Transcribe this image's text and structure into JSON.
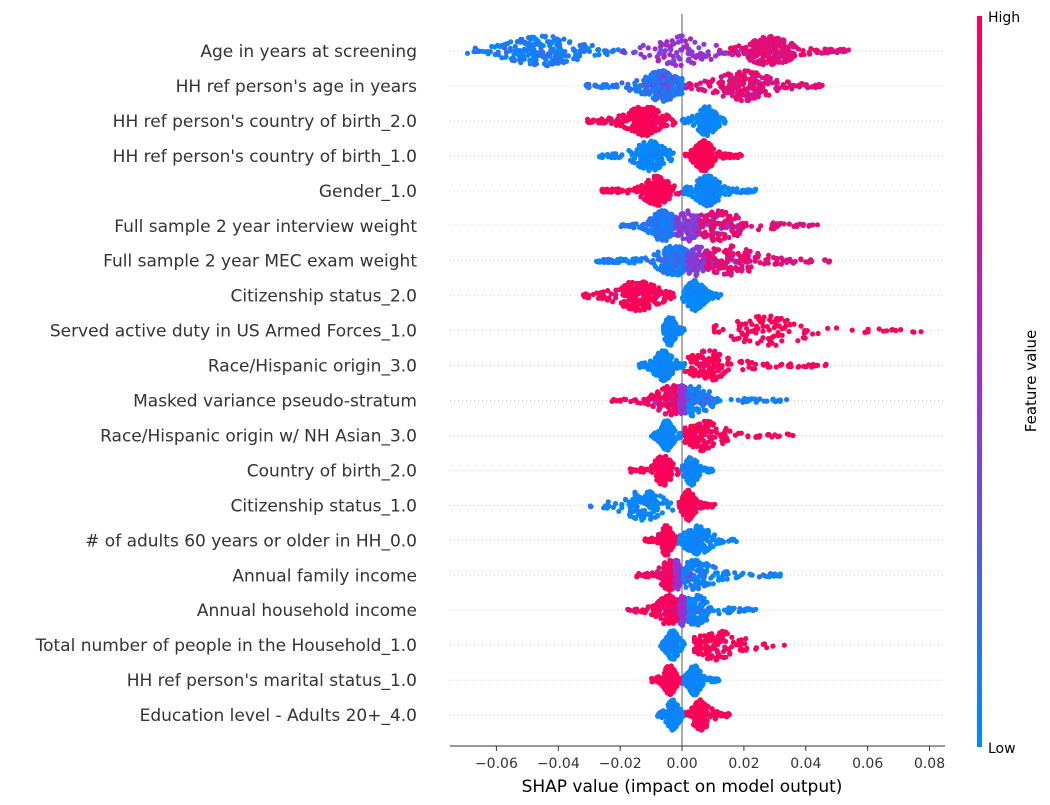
{
  "chart_data": {
    "type": "scatter",
    "subtype": "shap-beeswarm",
    "title": "",
    "xlabel": "SHAP value (impact on model output)",
    "ylabel": "",
    "xlim": [
      -0.075,
      0.085
    ],
    "xticks": [
      -0.06,
      -0.04,
      -0.02,
      0.0,
      0.02,
      0.04,
      0.06,
      0.08
    ],
    "xtick_labels": [
      "−0.06",
      "−0.04",
      "−0.02",
      "0.00",
      "0.02",
      "0.04",
      "0.06",
      "0.08"
    ],
    "grid": false,
    "colorbar": {
      "label": "Feature value",
      "high_label": "High",
      "low_label": "Low",
      "high_color": "#ff0052",
      "low_color": "#008bfb"
    },
    "features": [
      {
        "name": "Age in years at screening",
        "clusters": [
          {
            "fv": 0.08,
            "min": -0.07,
            "max": -0.015,
            "peak": -0.045,
            "w": 0.012,
            "n": 220
          },
          {
            "fv": 0.5,
            "min": -0.02,
            "max": 0.02,
            "peak": 0.0,
            "w": 0.01,
            "n": 90
          },
          {
            "fv": 0.85,
            "min": 0.012,
            "max": 0.054,
            "peak": 0.028,
            "w": 0.007,
            "n": 300
          }
        ]
      },
      {
        "name": "HH ref person's age in years",
        "clusters": [
          {
            "fv": 0.12,
            "min": -0.032,
            "max": 0.0,
            "peak": -0.006,
            "w": 0.007,
            "n": 200
          },
          {
            "fv": 0.45,
            "min": -0.014,
            "max": 0.004,
            "peak": -0.006,
            "w": 0.004,
            "n": 90
          },
          {
            "fv": 0.85,
            "min": 0.0,
            "max": 0.046,
            "peak": 0.02,
            "w": 0.009,
            "n": 220
          }
        ]
      },
      {
        "name": "HH ref person's country of birth_2.0",
        "clusters": [
          {
            "fv": 1.0,
            "min": -0.031,
            "max": -0.002,
            "peak": -0.012,
            "w": 0.006,
            "n": 240
          },
          {
            "fv": 0.0,
            "min": 0.0,
            "max": 0.014,
            "peak": 0.008,
            "w": 0.003,
            "n": 200
          }
        ]
      },
      {
        "name": "HH ref person's country of birth_1.0",
        "clusters": [
          {
            "fv": 0.0,
            "min": -0.027,
            "max": -0.002,
            "peak": -0.01,
            "w": 0.005,
            "n": 200
          },
          {
            "fv": 1.0,
            "min": 0.001,
            "max": 0.02,
            "peak": 0.007,
            "w": 0.003,
            "n": 240
          }
        ]
      },
      {
        "name": "Gender_1.0",
        "clusters": [
          {
            "fv": 1.0,
            "min": -0.026,
            "max": 0.0,
            "peak": -0.008,
            "w": 0.004,
            "n": 230
          },
          {
            "fv": 0.0,
            "min": 0.0,
            "max": 0.024,
            "peak": 0.008,
            "w": 0.004,
            "n": 230
          }
        ]
      },
      {
        "name": "Full sample 2 year interview weight",
        "clusters": [
          {
            "fv": 0.1,
            "min": -0.02,
            "max": 0.006,
            "peak": -0.006,
            "w": 0.004,
            "n": 220
          },
          {
            "fv": 0.45,
            "min": -0.008,
            "max": 0.02,
            "peak": 0.002,
            "w": 0.005,
            "n": 110
          },
          {
            "fv": 0.85,
            "min": 0.004,
            "max": 0.044,
            "peak": 0.01,
            "w": 0.01,
            "n": 150
          }
        ]
      },
      {
        "name": "Full sample 2 year MEC exam weight",
        "clusters": [
          {
            "fv": 0.1,
            "min": -0.028,
            "max": 0.004,
            "peak": -0.002,
            "w": 0.006,
            "n": 240
          },
          {
            "fv": 0.45,
            "min": -0.006,
            "max": 0.022,
            "peak": 0.004,
            "w": 0.005,
            "n": 100
          },
          {
            "fv": 0.85,
            "min": 0.006,
            "max": 0.048,
            "peak": 0.014,
            "w": 0.01,
            "n": 150
          }
        ]
      },
      {
        "name": "Citizenship status_2.0",
        "clusters": [
          {
            "fv": 1.0,
            "min": -0.032,
            "max": -0.002,
            "peak": -0.014,
            "w": 0.007,
            "n": 200
          },
          {
            "fv": 0.0,
            "min": 0.0,
            "max": 0.013,
            "peak": 0.004,
            "w": 0.003,
            "n": 200
          }
        ]
      },
      {
        "name": "Served active duty in US Armed Forces_1.0",
        "clusters": [
          {
            "fv": 0.0,
            "min": -0.006,
            "max": 0.001,
            "peak": -0.004,
            "w": 0.002,
            "n": 140
          },
          {
            "fv": 1.0,
            "min": 0.01,
            "max": 0.078,
            "peak": 0.028,
            "w": 0.014,
            "n": 110
          }
        ]
      },
      {
        "name": "Race/Hispanic origin_3.0",
        "clusters": [
          {
            "fv": 0.0,
            "min": -0.014,
            "max": 0.001,
            "peak": -0.006,
            "w": 0.003,
            "n": 220
          },
          {
            "fv": 1.0,
            "min": 0.001,
            "max": 0.047,
            "peak": 0.008,
            "w": 0.008,
            "n": 150
          }
        ]
      },
      {
        "name": "Masked variance pseudo-stratum",
        "clusters": [
          {
            "fv": 0.95,
            "min": -0.023,
            "max": 0.004,
            "peak": -0.003,
            "w": 0.005,
            "n": 140
          },
          {
            "fv": 0.45,
            "min": -0.012,
            "max": 0.012,
            "peak": 0.0,
            "w": 0.004,
            "n": 140
          },
          {
            "fv": 0.05,
            "min": -0.004,
            "max": 0.034,
            "peak": 0.003,
            "w": 0.006,
            "n": 130
          }
        ]
      },
      {
        "name": "Race/Hispanic origin w/ NH Asian_3.0",
        "clusters": [
          {
            "fv": 0.0,
            "min": -0.01,
            "max": 0.001,
            "peak": -0.005,
            "w": 0.002,
            "n": 200
          },
          {
            "fv": 1.0,
            "min": 0.001,
            "max": 0.037,
            "peak": 0.006,
            "w": 0.007,
            "n": 150
          }
        ]
      },
      {
        "name": "Country of birth_2.0",
        "clusters": [
          {
            "fv": 1.0,
            "min": -0.017,
            "max": -0.001,
            "peak": -0.006,
            "w": 0.003,
            "n": 150
          },
          {
            "fv": 0.0,
            "min": 0.0,
            "max": 0.01,
            "peak": 0.003,
            "w": 0.002,
            "n": 160
          }
        ]
      },
      {
        "name": "Citizenship status_1.0",
        "clusters": [
          {
            "fv": 0.0,
            "min": -0.03,
            "max": -0.002,
            "peak": -0.012,
            "w": 0.007,
            "n": 120
          },
          {
            "fv": 1.0,
            "min": -0.001,
            "max": 0.011,
            "peak": 0.002,
            "w": 0.002,
            "n": 190
          }
        ]
      },
      {
        "name": "# of adults 60 years or older in HH_0.0",
        "clusters": [
          {
            "fv": 1.0,
            "min": -0.012,
            "max": -0.001,
            "peak": -0.005,
            "w": 0.002,
            "n": 180
          },
          {
            "fv": 0.0,
            "min": -0.002,
            "max": 0.019,
            "peak": 0.005,
            "w": 0.004,
            "n": 160
          }
        ]
      },
      {
        "name": "Annual family income",
        "clusters": [
          {
            "fv": 0.95,
            "min": -0.015,
            "max": 0.0,
            "peak": -0.004,
            "w": 0.003,
            "n": 120
          },
          {
            "fv": 0.5,
            "min": -0.008,
            "max": 0.004,
            "peak": -0.002,
            "w": 0.002,
            "n": 90
          },
          {
            "fv": 0.05,
            "min": -0.002,
            "max": 0.032,
            "peak": 0.004,
            "w": 0.006,
            "n": 150
          }
        ]
      },
      {
        "name": "Annual household income",
        "clusters": [
          {
            "fv": 0.95,
            "min": -0.018,
            "max": 0.001,
            "peak": -0.004,
            "w": 0.004,
            "n": 130
          },
          {
            "fv": 0.5,
            "min": -0.006,
            "max": 0.006,
            "peak": 0.0,
            "w": 0.002,
            "n": 90
          },
          {
            "fv": 0.05,
            "min": -0.002,
            "max": 0.025,
            "peak": 0.004,
            "w": 0.005,
            "n": 140
          }
        ]
      },
      {
        "name": "Total number of people in the Household_1.0",
        "clusters": [
          {
            "fv": 0.0,
            "min": -0.007,
            "max": 0.001,
            "peak": -0.003,
            "w": 0.002,
            "n": 150
          },
          {
            "fv": 1.0,
            "min": 0.004,
            "max": 0.034,
            "peak": 0.01,
            "w": 0.009,
            "n": 110
          }
        ]
      },
      {
        "name": "HH ref person's marital status_1.0",
        "clusters": [
          {
            "fv": 1.0,
            "min": -0.01,
            "max": 0.0,
            "peak": -0.004,
            "w": 0.002,
            "n": 200
          },
          {
            "fv": 0.0,
            "min": 0.0,
            "max": 0.012,
            "peak": 0.004,
            "w": 0.002,
            "n": 190
          }
        ]
      },
      {
        "name": "Education level - Adults 20+_4.0",
        "clusters": [
          {
            "fv": 0.0,
            "min": -0.008,
            "max": 0.001,
            "peak": -0.003,
            "w": 0.002,
            "n": 150
          },
          {
            "fv": 1.0,
            "min": 0.001,
            "max": 0.016,
            "peak": 0.006,
            "w": 0.003,
            "n": 140
          }
        ]
      }
    ]
  }
}
